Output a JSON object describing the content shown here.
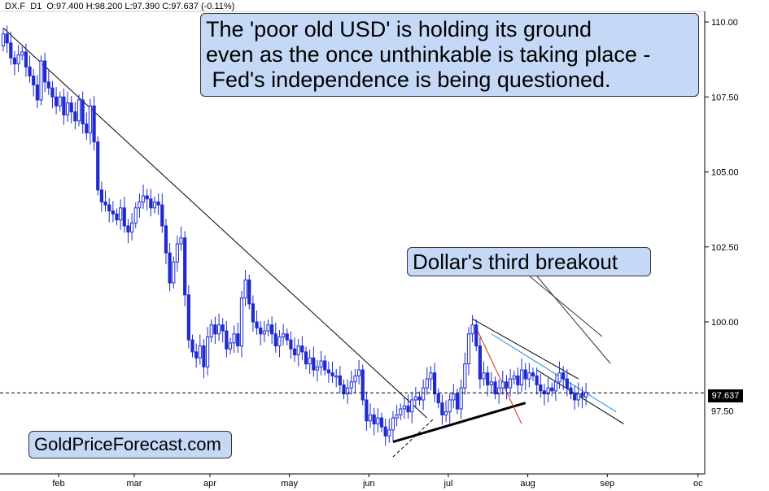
{
  "header": {
    "symbol": "DX.F",
    "timeframe": "D1",
    "ohlc_text": "O:97.400  H:98.200  L:97.390  C:97.637  (-0.11%)"
  },
  "annotations": {
    "main_lines": [
      "The 'poor old USD' is holding its ground",
      "even as the once unthinkable is taking place -",
      " Fed's independence is being questioned."
    ],
    "breakout": "Dollar's third breakout",
    "brand": "GoldPriceForecast.com"
  },
  "colors": {
    "bull": "#1f2bd1",
    "bear": "#1f2bd1",
    "callout_fill": "#c5d9f7",
    "trend_red": "#d62828",
    "trend_blue": "#2b8be0"
  },
  "chart_data": {
    "type": "candlestick",
    "y_axis_side": "right",
    "ylim": [
      94.2,
      110.5
    ],
    "y_ticks": [
      "110.00",
      "107.50",
      "105.00",
      "102.50",
      "100.00"
    ],
    "y_tick_values": [
      110.0,
      107.5,
      105.0,
      102.5,
      100.0
    ],
    "x_ticks": [
      "feb",
      "mar",
      "apr",
      "may",
      "jun",
      "jul",
      "aug",
      "sep",
      "oc"
    ],
    "x_tick_days": [
      0,
      20,
      40,
      61,
      82,
      103,
      124,
      145,
      169
    ],
    "current_price": 97.637,
    "current_price_label": "97.637",
    "hidden_price_label": "97.50",
    "grid": false,
    "closes": [
      109.6,
      109.3,
      108.8,
      108.6,
      108.9,
      109.0,
      108.5,
      108.2,
      107.9,
      107.4,
      108.7,
      108.0,
      107.8,
      107.5,
      107.2,
      107.5,
      106.9,
      107.3,
      107.0,
      106.7,
      107.4,
      106.6,
      106.3,
      107.2,
      106.0,
      104.4,
      104.0,
      103.9,
      103.7,
      103.6,
      103.4,
      103.8,
      103.2,
      103.0,
      103.3,
      103.8,
      104.0,
      104.2,
      104.1,
      103.8,
      104.0,
      103.9,
      103.2,
      102.3,
      101.3,
      102.0,
      102.6,
      102.8,
      100.9,
      99.4,
      99.0,
      98.8,
      99.2,
      98.5,
      99.5,
      99.9,
      99.6,
      99.9,
      99.7,
      99.1,
      99.3,
      99.6,
      99.2,
      100.8,
      101.4,
      100.6,
      100.0,
      99.8,
      99.6,
      99.7,
      99.9,
      99.6,
      99.2,
      99.5,
      99.6,
      99.4,
      99.1,
      98.9,
      99.2,
      99.0,
      98.6,
      98.8,
      98.4,
      98.5,
      98.7,
      98.4,
      98.3,
      98.2,
      98.2,
      97.9,
      97.6,
      97.8,
      98.0,
      98.2,
      98.4,
      97.4,
      96.7,
      96.9,
      96.6,
      96.8,
      96.5,
      96.2,
      96.4,
      96.8,
      96.9,
      97.1,
      97.2,
      97.0,
      97.4,
      97.5,
      97.4,
      97.8,
      98.1,
      98.3,
      97.6,
      97.3,
      96.9,
      97.0,
      97.4,
      97.6,
      97.1,
      97.8,
      98.6,
      99.6,
      99.9,
      99.2,
      98.1,
      98.3,
      97.9,
      98.0,
      97.6,
      97.8,
      98.0,
      97.8,
      98.1,
      98.2,
      97.9,
      98.4,
      98.1,
      98.3,
      98.2,
      97.9,
      97.7,
      97.6,
      97.8,
      97.7,
      98.0,
      98.3,
      98.1,
      97.8,
      97.6,
      97.4,
      97.6,
      97.5,
      97.637
    ],
    "trendlines": [
      {
        "from": [
          0,
          109.8
        ],
        "to": [
          112,
          96.8
        ],
        "color": "black"
      },
      {
        "from": [
          124,
          100.1
        ],
        "to": [
          152,
          98.1
        ],
        "color": "black"
      },
      {
        "from": [
          141,
          98.4
        ],
        "to": [
          164,
          96.6
        ],
        "color": "black"
      },
      {
        "from": [
          103,
          96.0
        ],
        "to": [
          138,
          97.3
        ],
        "color": "black",
        "weight": "bold"
      },
      {
        "from": [
          103,
          95.5
        ],
        "to": [
          114,
          96.8
        ],
        "color": "black",
        "style": "dashed"
      },
      {
        "from": [
          125,
          99.8
        ],
        "to": [
          137,
          96.6
        ],
        "color": "red"
      },
      {
        "from": [
          129,
          99.6
        ],
        "to": [
          162,
          97.0
        ],
        "color": "blue"
      }
    ]
  }
}
